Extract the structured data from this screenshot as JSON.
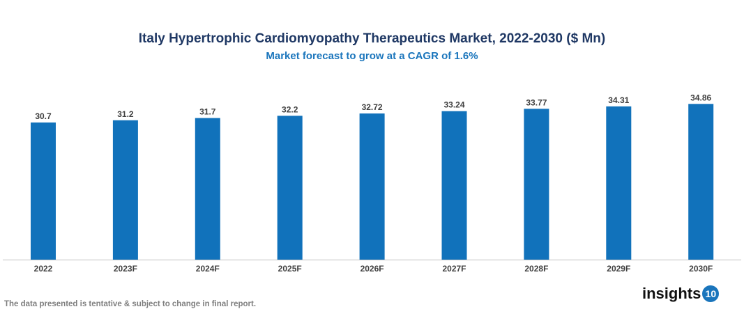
{
  "chart_data": {
    "type": "bar",
    "title": "Italy Hypertrophic Cardiomyopathy Therapeutics Market, 2022-2030 ($ Mn)",
    "subtitle": "Market forecast to grow at a CAGR of 1.6%",
    "categories": [
      "2022",
      "2023F",
      "2024F",
      "2025F",
      "2026F",
      "2027F",
      "2028F",
      "2029F",
      "2030F"
    ],
    "values": [
      30.7,
      31.2,
      31.7,
      32.2,
      32.72,
      33.24,
      33.77,
      34.31,
      34.86
    ],
    "labels": [
      "30.7",
      "31.2",
      "31.7",
      "32.2",
      "32.72",
      "33.24",
      "33.77",
      "34.31",
      "34.86"
    ],
    "xlabel": "",
    "ylabel": "",
    "ylim": [
      0,
      35
    ],
    "grid": false,
    "bar_color": "#1172bb"
  },
  "footer": "The data presented is tentative & subject to change in final report.",
  "logo": {
    "text": "insights",
    "badge": "10"
  }
}
